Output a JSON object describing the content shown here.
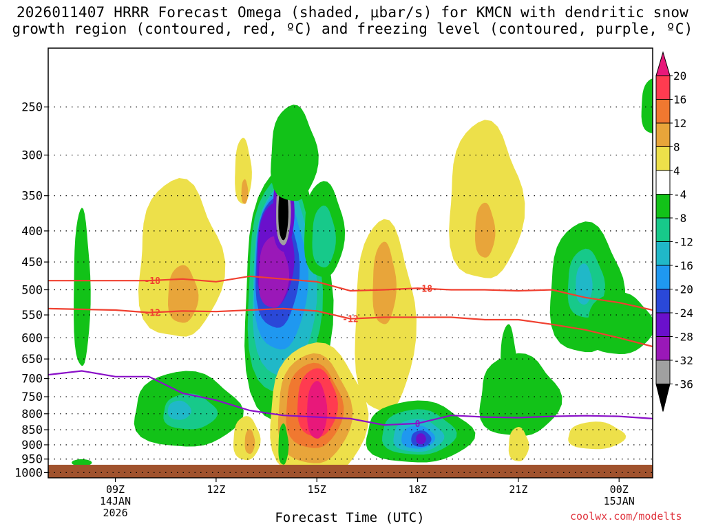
{
  "chart_data": {
    "type": "heatmap",
    "title": "2026011407 HRRR Forecast Omega (shaded, μbar/s) for KMCN with dendritic snow growth region (contoured, red, ºC) and freezing level (contoured, purple, ºC)",
    "title_lines": [
      "2026011407 HRRR Forecast Omega (shaded, μbar/s) for KMCN with dendritic snow",
      "growth region (contoured, red, ºC) and freezing level (contoured, purple, ºC)"
    ],
    "xlabel": "Forecast Time (UTC)",
    "ylabel": "",
    "credit": "coolwx.com/modelts",
    "x_range_hours": [
      7,
      25
    ],
    "y_range_hpa": [
      1020,
      200
    ],
    "y_ticks": [
      250,
      300,
      350,
      400,
      450,
      500,
      550,
      600,
      650,
      700,
      750,
      800,
      850,
      900,
      950,
      1000
    ],
    "x_ticks": [
      {
        "hour": 9,
        "label": "09Z",
        "date": "14JAN",
        "year": "2026"
      },
      {
        "hour": 12,
        "label": "12Z",
        "date": "",
        "year": ""
      },
      {
        "hour": 15,
        "label": "15Z",
        "date": "",
        "year": ""
      },
      {
        "hour": 18,
        "label": "18Z",
        "date": "",
        "year": ""
      },
      {
        "hour": 21,
        "label": "21Z",
        "date": "",
        "year": ""
      },
      {
        "hour": 24,
        "label": "00Z",
        "date": "15JAN",
        "year": ""
      }
    ],
    "colorbar": {
      "labels": [
        "20",
        "16",
        "12",
        "8",
        "4",
        "-4",
        "-8",
        "-12",
        "-16",
        "-20",
        "-24",
        "-28",
        "-32",
        "-36"
      ],
      "colors": [
        "#e8187a",
        "#ff3b50",
        "#f07830",
        "#e8a53a",
        "#ede04a",
        "#ffffff",
        "#12c218",
        "#17c98a",
        "#20b8c8",
        "#1f98f0",
        "#2a48d8",
        "#6a10cc",
        "#9a18b8",
        "#a0a0a0",
        "#000000"
      ]
    },
    "omega_features": [
      {
        "name": "updraft-core",
        "hour": 14.0,
        "p": 380,
        "min": -36
      },
      {
        "name": "updraft-column",
        "hour": 13.8,
        "p": 520,
        "min": -28
      },
      {
        "name": "low-level-updraft",
        "hour": 18.0,
        "p": 870,
        "min": -24
      },
      {
        "name": "left-updraft",
        "hour": 11.0,
        "p": 800,
        "min": -12
      },
      {
        "name": "right-updraft",
        "hour": 23.0,
        "p": 500,
        "min": -12
      },
      {
        "name": "subsidence-core",
        "hour": 15.0,
        "p": 760,
        "max": 20
      },
      {
        "name": "upper-subsidence",
        "hour": 20.0,
        "p": 400,
        "max": 12
      },
      {
        "name": "left-subsidence",
        "hour": 10.5,
        "p": 500,
        "max": 12
      }
    ],
    "dgz_contours": [
      {
        "label": "-18",
        "hours": [
          7,
          9,
          10,
          11,
          12,
          13,
          14,
          15,
          16,
          17,
          18,
          19,
          20,
          21,
          22,
          23,
          24,
          25
        ],
        "p": [
          483,
          483,
          483,
          480,
          485,
          475,
          480,
          485,
          502,
          500,
          497,
          500,
          500,
          502,
          500,
          515,
          525,
          540
        ]
      },
      {
        "label": "-12",
        "hours": [
          7,
          9,
          10,
          11,
          12,
          13,
          14,
          15,
          16,
          17,
          18,
          19,
          20,
          21,
          22,
          23,
          24,
          25
        ],
        "p": [
          537,
          540,
          545,
          542,
          543,
          540,
          537,
          542,
          558,
          555,
          555,
          555,
          560,
          560,
          570,
          582,
          600,
          620
        ]
      }
    ],
    "freezing_level": {
      "label": "0",
      "hours": [
        7,
        8,
        9,
        10,
        11,
        12,
        13,
        14,
        15,
        16,
        17,
        18,
        19,
        20,
        21,
        22,
        23,
        24,
        25
      ],
      "p": [
        690,
        680,
        695,
        695,
        740,
        760,
        790,
        805,
        810,
        815,
        835,
        830,
        805,
        810,
        812,
        808,
        806,
        808,
        815
      ]
    }
  }
}
